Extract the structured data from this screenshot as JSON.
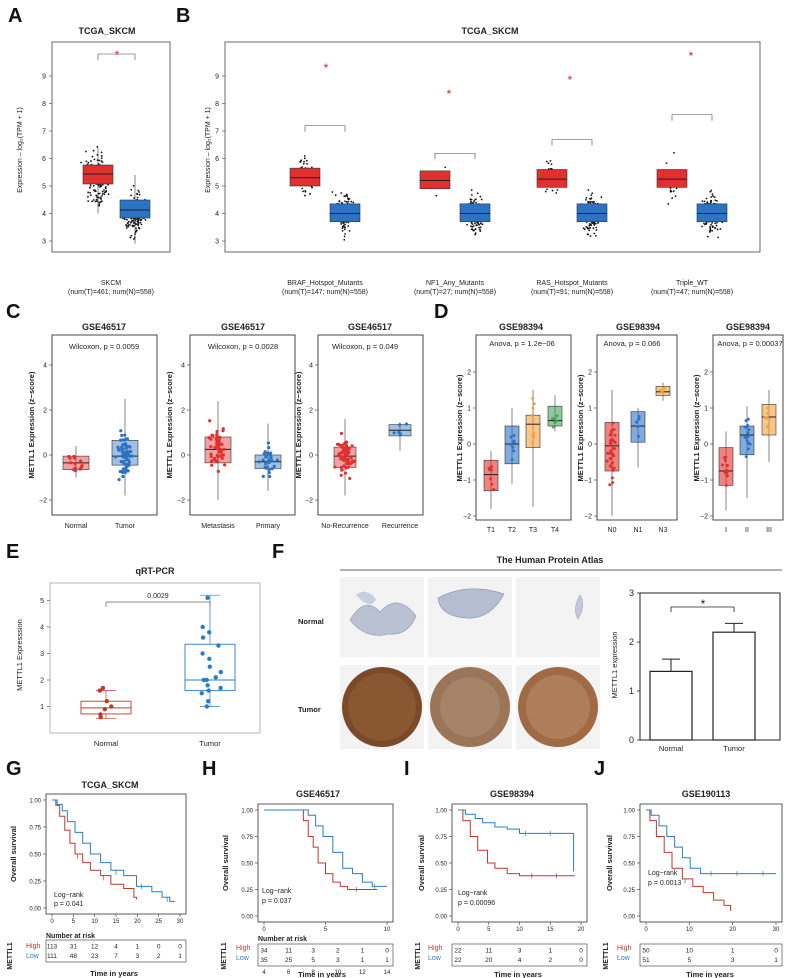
{
  "panel_labels": [
    "A",
    "B",
    "C",
    "D",
    "E",
    "F",
    "G",
    "H",
    "I",
    "J"
  ],
  "colors": {
    "tumor": "#e2302f",
    "normal": "#2c73c4",
    "orange": "#f2a13c",
    "green": "#4aa55a",
    "highline": "#c0392b",
    "lowline": "#2d7bc4"
  },
  "panelA": {
    "title": "TCGA_SKCM",
    "ylabel": "Expression – log₂(TPM + 1)",
    "yticks": [
      "3",
      "4",
      "5",
      "6",
      "7",
      "8",
      "9"
    ],
    "star": "*",
    "group_label": "SKCM",
    "group_n": "(num(T)=461; num(N)=558)"
  },
  "panelB": {
    "title": "TCGA_SKCM",
    "ylabel": "Expression – log₂(TPM + 1)",
    "yticks": [
      "3",
      "4",
      "5",
      "6",
      "7",
      "8",
      "9"
    ],
    "star": "*",
    "groups": [
      {
        "label": "BRAF_Hotspot_Mutants",
        "n": "(num(T)=147; num(N)=558)"
      },
      {
        "label": "NF1_Any_Mutants",
        "n": "(num(T)=27; num(N)=558)"
      },
      {
        "label": "RAS_Hotspot_Mutants",
        "n": "(num(T)=91; num(N)=558)"
      },
      {
        "label": "Triple_WT",
        "n": "(num(T)=47; num(N)=558)"
      }
    ]
  },
  "panelC": {
    "ylabel": "METTL1 Expression (z−score)",
    "plots": [
      {
        "title": "GSE46517",
        "stat": "Wilcoxon, p = 0.0059",
        "cats": [
          "Normal",
          "Tumor"
        ]
      },
      {
        "title": "GSE46517",
        "stat": "Wilcoxon, p = 0.0028",
        "cats": [
          "Metastasis",
          "Primary"
        ]
      },
      {
        "title": "GSE46517",
        "stat": "Wilcoxon, p = 0.049",
        "cats": [
          "No-Recurrence",
          "Recurrence"
        ]
      }
    ],
    "yticks": [
      "−2",
      "0",
      "2",
      "4"
    ]
  },
  "panelD": {
    "ylabel": "METTL1 Expression (z−score)",
    "yticks": [
      "−2",
      "−1",
      "0",
      "1",
      "2"
    ],
    "plots": [
      {
        "title": "GSE98394",
        "stat": "Anova, p = 1.2e−06",
        "cats": [
          "T1",
          "T2",
          "T3",
          "T4"
        ]
      },
      {
        "title": "GSE98394",
        "stat": "Anova, p = 0.066",
        "cats": [
          "N0",
          "N1",
          "N3"
        ]
      },
      {
        "title": "GSE98394",
        "stat": "Anova, p = 0.00037",
        "cats": [
          "I",
          "II",
          "III"
        ]
      }
    ]
  },
  "panelE": {
    "title": "qRT-PCR",
    "ylabel": "METTL1 Expresssion",
    "pval": "0.0029",
    "yticks": [
      "1",
      "2",
      "3",
      "4",
      "5"
    ],
    "cats": [
      "Normal",
      "Tumor"
    ]
  },
  "panelF": {
    "title": "The Human Protein Atlas",
    "rows": [
      "Normal",
      "Tumor"
    ],
    "bar_ylabel": "METTL1 expression",
    "star": "*",
    "cats": [
      "Normal",
      "Tumor"
    ],
    "yticks": [
      "0",
      "1",
      "2",
      "3"
    ]
  },
  "chart_data": [
    {
      "type": "bar",
      "title": "METTL1 expression (HPA)",
      "categories": [
        "Normal",
        "Tumor"
      ],
      "values": [
        1.4,
        2.2
      ],
      "errors": [
        0.25,
        0.18
      ],
      "ylim": [
        0,
        3
      ],
      "ylabel": "METTL1 expression"
    },
    {
      "type": "box",
      "title": "qRT-PCR",
      "categories": [
        "Normal",
        "Tumor"
      ],
      "medians": [
        0.95,
        2.0
      ],
      "q1": [
        0.72,
        1.6
      ],
      "q3": [
        1.2,
        3.35
      ],
      "ylim": [
        0,
        5.5
      ],
      "ylabel": "METTL1 Expresssion",
      "p": "0.0029"
    }
  ],
  "panelG": {
    "title": "TCGA_SKCM",
    "ylabel": "Overall survival",
    "yticks": [
      "0.00",
      "0.25",
      "0.50",
      "0.75",
      "1.00"
    ],
    "xticks": [
      "0",
      "5",
      "10",
      "15",
      "20",
      "25",
      "30"
    ],
    "stat1": "Log−rank",
    "stat2": "p = 0.041",
    "risk_title": "Number at risk",
    "gene": "METTL1",
    "high": "High",
    "low": "Low",
    "high_risk": [
      "113",
      "31",
      "12",
      "4",
      "1",
      "0",
      "0"
    ],
    "low_risk": [
      "111",
      "48",
      "23",
      "7",
      "3",
      "2",
      "1"
    ],
    "xlabel": "Time in years"
  },
  "panelH": {
    "title": "GSE46517",
    "ylabel": "Overall survival",
    "yticks": [
      "0.00",
      "0.25",
      "0.50",
      "0.75",
      "1.00"
    ],
    "xticks": [
      "0",
      "5",
      "10"
    ],
    "stat1": "Log−rank",
    "stat2": "p = 0.037",
    "risk_title": "Number at risk",
    "gene": "METTL1",
    "high": "High",
    "low": "Low",
    "high_risk": [
      "34",
      "11",
      "3",
      "2",
      "1",
      "0"
    ],
    "low_risk": [
      "35",
      "25",
      "5",
      "3",
      "1",
      "1"
    ],
    "risk_xticks": [
      "4",
      "6",
      "8",
      "10",
      "12",
      "14"
    ],
    "xlabel": "Time in years"
  },
  "panelI": {
    "title": "GSE98394",
    "ylabel": "Overall survival",
    "yticks": [
      "0.00",
      "0.25",
      "0.50",
      "0.75",
      "1.00"
    ],
    "xticks": [
      "0",
      "5",
      "10",
      "15",
      "20"
    ],
    "stat1": "Log−rank",
    "stat2": "p = 0.00096",
    "risk_title": "Number at risk",
    "gene": "METTL1",
    "high": "High",
    "low": "Low",
    "high_risk": [
      "22",
      "11",
      "3",
      "1",
      "0"
    ],
    "low_risk": [
      "22",
      "20",
      "4",
      "2",
      "0"
    ],
    "xlabel": "Time in years"
  },
  "panelJ": {
    "title": "GSE190113",
    "ylabel": "Overall survival",
    "yticks": [
      "0.00",
      "0.25",
      "0.50",
      "0.75",
      "1.00"
    ],
    "xticks": [
      "0",
      "10",
      "20",
      "30"
    ],
    "stat1": "Log−rank",
    "stat2": "p = 0.0013",
    "risk_title": "Number at risk",
    "gene": "METTL1",
    "high": "High",
    "low": "Low",
    "high_risk": [
      "50",
      "10",
      "1",
      "0"
    ],
    "low_risk": [
      "51",
      "5",
      "3",
      "1"
    ],
    "xlabel": "Time in years"
  }
}
